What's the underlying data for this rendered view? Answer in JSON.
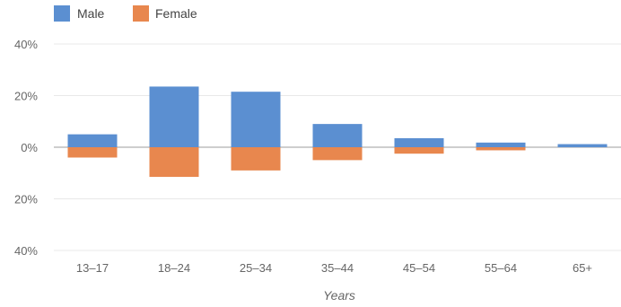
{
  "chart_data": {
    "type": "bar",
    "stacked_diverging": true,
    "categories": [
      "13–17",
      "18–24",
      "25–34",
      "35–44",
      "45–54",
      "55–64",
      "65+"
    ],
    "series": [
      {
        "name": "Male",
        "color": "#5b8fd1",
        "values": [
          5,
          23.5,
          21.5,
          9,
          3.5,
          1.8,
          1.2
        ],
        "direction": "up"
      },
      {
        "name": "Female",
        "color": "#e8874e",
        "values": [
          4,
          11.5,
          9,
          5,
          2.5,
          1.2,
          0
        ],
        "direction": "down"
      }
    ],
    "yticks": [
      "40%",
      "20%",
      "0%",
      "20%",
      "40%"
    ],
    "ylim": [
      -40,
      40
    ],
    "xlabel": "Years",
    "ylabel": "",
    "legend_position": "top-left",
    "grid": true
  }
}
